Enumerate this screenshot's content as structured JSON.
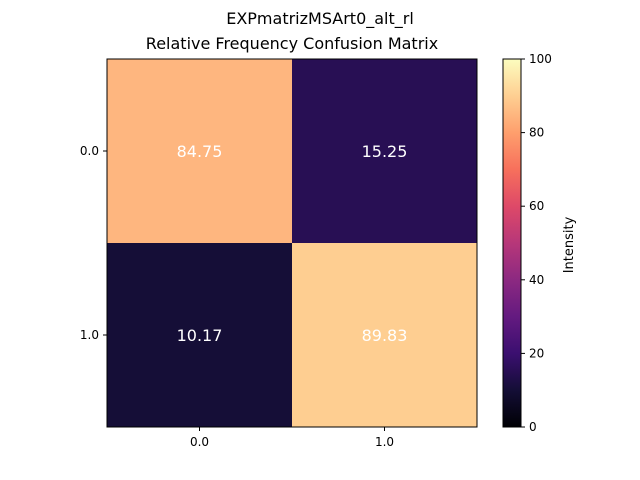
{
  "chart_data": {
    "type": "heatmap",
    "suptitle": "EXPmatrizMSArt0_alt_rl",
    "title": "Relative Frequency Confusion Matrix",
    "x_categories": [
      "0.0",
      "1.0"
    ],
    "y_categories": [
      "0.0",
      "1.0"
    ],
    "values": [
      [
        84.75,
        15.25
      ],
      [
        10.17,
        89.83
      ]
    ],
    "value_labels": [
      [
        "84.75",
        "15.25"
      ],
      [
        "10.17",
        "89.83"
      ]
    ],
    "colormap": "magma",
    "colorbar": {
      "label": "Intensity",
      "range": [
        0,
        100
      ],
      "ticks": [
        "0",
        "20",
        "40",
        "60",
        "80",
        "100"
      ]
    },
    "cell_text_color": "#ffffff"
  }
}
